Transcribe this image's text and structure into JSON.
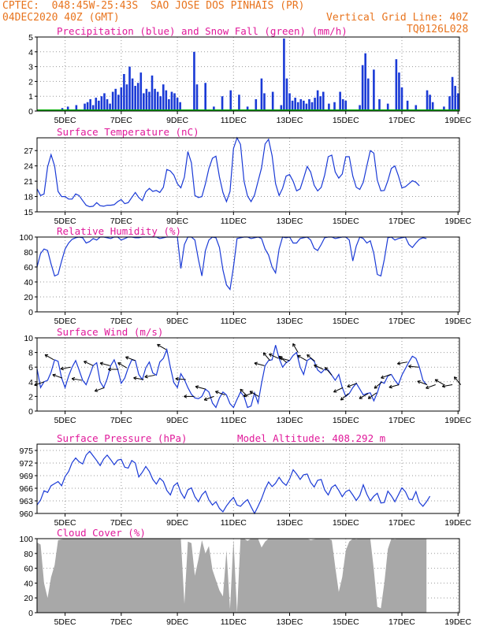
{
  "header": {
    "line1": "CPTEC:  048:45W-25:43S  SAO JOSE DOS PINHAIS (PR)",
    "line2": "04DEC2020 40Z (GMT)",
    "grid_note": "Vertical Grid Line: 40Z",
    "code": "TQ0126L028"
  },
  "colors": {
    "header": "#e8741e",
    "title": "#e0199a",
    "line": "#1a3ad6",
    "snow": "#00aa00",
    "cloud": "#a8a8a8",
    "wind_arrow": "#000000"
  },
  "x_tick_labels": [
    "5DEC",
    "7DEC",
    "9DEC",
    "11DEC",
    "13DEC",
    "15DEC",
    "17DEC",
    "19DEC"
  ],
  "chart_data": [
    {
      "id": "precip",
      "type": "bar",
      "title": "Precipitation (blue) and Snow Fall (green) (mm/h)",
      "ylim": [
        0,
        5
      ],
      "yticks": [
        0,
        1,
        2,
        3,
        4,
        5
      ],
      "x_days": [
        4.6,
        4.9,
        5.0,
        5.1,
        5.4,
        5.7,
        5.8,
        5.9,
        6.0,
        6.1,
        6.2,
        6.3,
        6.4,
        6.5,
        6.6,
        6.7,
        6.8,
        6.9,
        7.0,
        7.1,
        7.2,
        7.3,
        7.4,
        7.5,
        7.6,
        7.7,
        7.8,
        7.9,
        8.0,
        8.1,
        8.2,
        8.3,
        8.4,
        8.5,
        8.6,
        8.7,
        8.8,
        8.9,
        9.0,
        9.1,
        9.6,
        9.7,
        10.0,
        10.3,
        10.6,
        10.9,
        11.2,
        11.5,
        11.8,
        12.0,
        12.1,
        12.4,
        12.7,
        12.8,
        12.9,
        13.0,
        13.1,
        13.2,
        13.3,
        13.4,
        13.5,
        13.6,
        13.7,
        13.8,
        13.9,
        14.0,
        14.1,
        14.2,
        14.4,
        14.6,
        14.8,
        14.9,
        15.0,
        15.5,
        15.6,
        15.7,
        15.8,
        16.0,
        16.2,
        16.5,
        16.8,
        16.9,
        17.0,
        17.2,
        17.5,
        17.9,
        18.0,
        18.1,
        18.5,
        18.7,
        18.8,
        18.9,
        19.0
      ],
      "precip": [
        0.1,
        0.2,
        0.1,
        0.3,
        0.4,
        0.5,
        0.6,
        0.8,
        0.4,
        0.9,
        0.7,
        1.0,
        1.2,
        0.8,
        0.5,
        1.3,
        1.5,
        1.1,
        1.6,
        2.5,
        1.8,
        3.0,
        2.2,
        1.7,
        1.9,
        2.6,
        1.2,
        1.5,
        1.3,
        2.4,
        1.5,
        1.3,
        1.0,
        1.8,
        1.4,
        0.8,
        1.3,
        1.2,
        0.9,
        0.6,
        4.0,
        1.8,
        1.9,
        0.3,
        1.0,
        1.4,
        1.1,
        0.3,
        0.8,
        2.2,
        1.2,
        1.3,
        0.4,
        4.9,
        2.2,
        1.2,
        0.7,
        0.9,
        0.6,
        0.8,
        0.7,
        0.5,
        0.8,
        0.6,
        0.9,
        1.4,
        1.0,
        1.3,
        0.5,
        0.6,
        1.3,
        0.8,
        0.7,
        0.4,
        3.1,
        3.9,
        2.2,
        2.8,
        0.8,
        0.5,
        3.5,
        2.6,
        1.6,
        0.7,
        0.4,
        1.4,
        1.1,
        0.6,
        0.3,
        1.0,
        2.3,
        1.7,
        1.2
      ],
      "snow": "0 throughout"
    },
    {
      "id": "temp",
      "type": "line",
      "title": "Surface Temperature (nC)",
      "ylim": [
        15,
        29.5
      ],
      "yticks": [
        15,
        18,
        21,
        24,
        27
      ],
      "x_start_day": 4,
      "x_step_day": 0.125,
      "values": [
        19.5,
        18.2,
        18.5,
        23.8,
        26.2,
        24.0,
        19.0,
        18.0,
        18.0,
        17.5,
        17.5,
        18.5,
        18.2,
        17.2,
        16.3,
        16.0,
        16.1,
        16.8,
        16.2,
        16.1,
        16.3,
        16.3,
        16.4,
        17.0,
        17.4,
        16.6,
        16.8,
        17.8,
        18.8,
        17.8,
        17.2,
        18.9,
        19.6,
        19.0,
        19.2,
        18.8,
        19.8,
        23.3,
        23.0,
        22.2,
        20.5,
        19.7,
        21.8,
        26.8,
        24.6,
        18.2,
        17.8,
        18.0,
        20.5,
        23.5,
        25.5,
        25.9,
        21.8,
        18.8,
        17.0,
        19.0,
        27.4,
        29.5,
        28.2,
        21.0,
        18.1,
        17.0,
        18.3,
        21.0,
        23.6,
        28.3,
        29.2,
        26.0,
        20.5,
        18.2,
        19.6,
        22.0,
        22.3,
        21.0,
        19.1,
        19.5,
        21.6,
        23.9,
        22.8,
        20.2,
        19.1,
        19.8,
        22.2,
        25.8,
        26.1,
        22.8,
        21.6,
        22.4,
        25.8,
        25.8,
        22.0,
        19.8,
        19.4,
        20.8,
        24.0,
        27.0,
        26.5,
        21.2,
        19.1,
        19.2,
        21.1,
        23.5,
        24.0,
        22.1,
        19.7,
        19.9,
        20.5,
        21.1,
        20.8,
        20.1
      ],
      "x_tick_labels": [
        "5DEC",
        "7DEC",
        "9DEC",
        "11DEC",
        "13DEC",
        "15DEC",
        "17DEC",
        "19DEC"
      ]
    },
    {
      "id": "rh",
      "type": "line",
      "title": "Relative Humidity (%)",
      "ylim": [
        0,
        100
      ],
      "yticks": [
        0,
        20,
        40,
        60,
        80,
        100
      ],
      "x_start_day": 4,
      "x_step_day": 0.125,
      "values": [
        60,
        78,
        84,
        82,
        64,
        48,
        50,
        68,
        84,
        92,
        97,
        99,
        100,
        99,
        92,
        94,
        98,
        96,
        100,
        100,
        99,
        98,
        100,
        100,
        96,
        98,
        100,
        100,
        99,
        99,
        100,
        100,
        100,
        100,
        100,
        98,
        99,
        100,
        100,
        100,
        100,
        58,
        90,
        100,
        100,
        96,
        70,
        48,
        82,
        96,
        100,
        99,
        86,
        56,
        36,
        30,
        60,
        98,
        99,
        100,
        100,
        98,
        99,
        100,
        98,
        84,
        76,
        60,
        52,
        84,
        100,
        99,
        100,
        92,
        92,
        98,
        99,
        100,
        96,
        85,
        82,
        90,
        99,
        100,
        100,
        98,
        99,
        100,
        100,
        96,
        68,
        88,
        100,
        98,
        92,
        95,
        78,
        50,
        48,
        70,
        99,
        100,
        96,
        98,
        99,
        100,
        90,
        86,
        92,
        97,
        99,
        98
      ],
      "x_tick_labels": [
        "5DEC",
        "7DEC",
        "9DEC",
        "11DEC",
        "13DEC",
        "15DEC",
        "17DEC",
        "19DEC"
      ]
    },
    {
      "id": "wind",
      "type": "line",
      "title": "Surface Wind (m/s)",
      "ylim": [
        0,
        10
      ],
      "yticks": [
        0,
        2,
        4,
        6,
        8,
        10
      ],
      "x_start_day": 4,
      "x_step_day": 0.125,
      "values": [
        5.8,
        3.2,
        4.0,
        4.2,
        5.3,
        7.0,
        6.8,
        4.5,
        3.2,
        4.8,
        6.0,
        6.9,
        5.6,
        4.2,
        3.6,
        4.9,
        6.2,
        6.6,
        4.0,
        3.2,
        4.4,
        6.2,
        7.0,
        5.7,
        3.8,
        4.5,
        5.9,
        7.0,
        6.9,
        5.0,
        4.3,
        5.9,
        6.7,
        5.2,
        4.9,
        6.7,
        7.2,
        8.4,
        6.0,
        3.9,
        3.2,
        5.1,
        4.3,
        3.2,
        2.3,
        1.8,
        1.7,
        2.0,
        3.0,
        2.6,
        1.1,
        0.5,
        1.8,
        2.6,
        2.2,
        1.0,
        0.5,
        1.6,
        2.6,
        2.0,
        0.5,
        0.7,
        2.5,
        1.1,
        3.8,
        6.2,
        6.9,
        7.0,
        9.0,
        7.2,
        6.0,
        6.6,
        6.9,
        7.6,
        8.0,
        6.0,
        5.0,
        6.9,
        7.2,
        6.8,
        5.6,
        5.2,
        5.7,
        5.6,
        4.9,
        4.2,
        5.0,
        3.2,
        2.0,
        2.4,
        3.2,
        3.8,
        3.0,
        2.2,
        2.4,
        2.5,
        1.4,
        2.5,
        4.0,
        3.8,
        4.8,
        5.0,
        4.2,
        3.6,
        4.9,
        5.8,
        6.7,
        7.5,
        7.2,
        6.0,
        4.2,
        3.6
      ],
      "arrows_x_days": [
        4.25,
        4.6,
        4.9,
        5.2,
        5.6,
        6.0,
        6.4,
        6.6,
        6.9,
        7.2,
        7.5,
        7.8,
        8.2,
        8.6,
        9.3,
        9.6,
        10.0,
        10.3,
        10.7,
        11.5,
        11.7,
        11.9,
        12.1,
        12.3,
        12.6,
        12.9,
        13.0,
        13.3,
        13.6,
        13.9,
        14.2,
        14.5,
        14.9,
        15.1,
        15.4,
        15.8,
        16.1,
        16.3,
        16.6,
        16.9,
        17.2,
        17.6,
        17.9,
        18.2,
        18.5,
        18.8,
        19.1
      ],
      "x_tick_labels": [
        "5DEC",
        "7DEC",
        "9DEC",
        "11DEC",
        "13DEC",
        "15DEC",
        "17DEC",
        "19DEC"
      ]
    },
    {
      "id": "pressure",
      "type": "line",
      "title": "Surface Pressure (hPa)",
      "subtitle": "Model Altitude: 408.292 m",
      "ylim": [
        960,
        976.5
      ],
      "yticks": [
        960,
        963,
        966,
        969,
        972,
        975
      ],
      "x_start_day": 4,
      "x_step_day": 0.125,
      "values": [
        962.0,
        963.2,
        965.4,
        965.0,
        966.6,
        967.1,
        967.6,
        966.6,
        968.8,
        970.0,
        972.1,
        973.2,
        972.3,
        971.8,
        973.9,
        974.8,
        973.7,
        972.6,
        971.4,
        973.0,
        973.9,
        972.8,
        971.6,
        972.7,
        972.9,
        971.0,
        970.8,
        972.6,
        972.0,
        968.7,
        969.8,
        971.2,
        970.0,
        968.1,
        967.0,
        968.4,
        967.6,
        965.5,
        964.4,
        966.6,
        967.3,
        965.0,
        963.6,
        965.6,
        966.1,
        964.0,
        962.8,
        964.4,
        965.3,
        963.2,
        962.0,
        962.8,
        961.2,
        960.4,
        961.8,
        962.9,
        963.8,
        962.0,
        961.7,
        962.6,
        963.3,
        961.6,
        960.0,
        961.7,
        963.5,
        965.8,
        967.5,
        966.4,
        967.2,
        968.6,
        967.4,
        966.7,
        968.2,
        970.4,
        969.4,
        968.1,
        969.2,
        969.4,
        967.4,
        966.3,
        967.9,
        968.1,
        965.6,
        964.4,
        966.2,
        966.8,
        965.5,
        964.0,
        965.2,
        965.6,
        964.4,
        963.1,
        964.3,
        966.8,
        964.6,
        963.0,
        964.1,
        964.8,
        962.5,
        962.6,
        965.3,
        964.2,
        962.8,
        964.4,
        966.1,
        965.2,
        963.4,
        963.3,
        965.2,
        962.6,
        961.7,
        962.8,
        964.1
      ],
      "x_tick_labels": [
        "5DEC",
        "7DEC",
        "9DEC",
        "11DEC",
        "13DEC",
        "15DEC",
        "17DEC",
        "19DEC"
      ]
    },
    {
      "id": "cloud",
      "type": "area",
      "title": "Cloud Cover (%)",
      "ylim": [
        0,
        100
      ],
      "yticks": [
        0,
        20,
        40,
        60,
        80,
        100
      ],
      "x_start_day": 4,
      "x_step_day": 0.125,
      "values": [
        95,
        92,
        40,
        20,
        48,
        64,
        98,
        99,
        100,
        100,
        100,
        100,
        100,
        100,
        100,
        100,
        100,
        100,
        100,
        100,
        100,
        100,
        100,
        100,
        100,
        100,
        100,
        100,
        100,
        100,
        100,
        100,
        100,
        100,
        100,
        100,
        100,
        100,
        100,
        100,
        100,
        100,
        12,
        96,
        94,
        50,
        72,
        98,
        80,
        90,
        58,
        44,
        30,
        22,
        84,
        5,
        99,
        0,
        100,
        100,
        97,
        100,
        100,
        100,
        88,
        96,
        100,
        100,
        100,
        100,
        100,
        100,
        100,
        100,
        100,
        100,
        100,
        100,
        98,
        99,
        100,
        100,
        100,
        100,
        98,
        62,
        28,
        48,
        84,
        96,
        100,
        99,
        100,
        100,
        100,
        100,
        58,
        8,
        6,
        40,
        86,
        100,
        99,
        100,
        100,
        100,
        100,
        100,
        100,
        100,
        100,
        100
      ],
      "x_tick_labels": [
        "5DEC",
        "7DEC",
        "9DEC",
        "11DEC",
        "13DEC",
        "15DEC",
        "17DEC",
        "19DEC"
      ]
    }
  ]
}
